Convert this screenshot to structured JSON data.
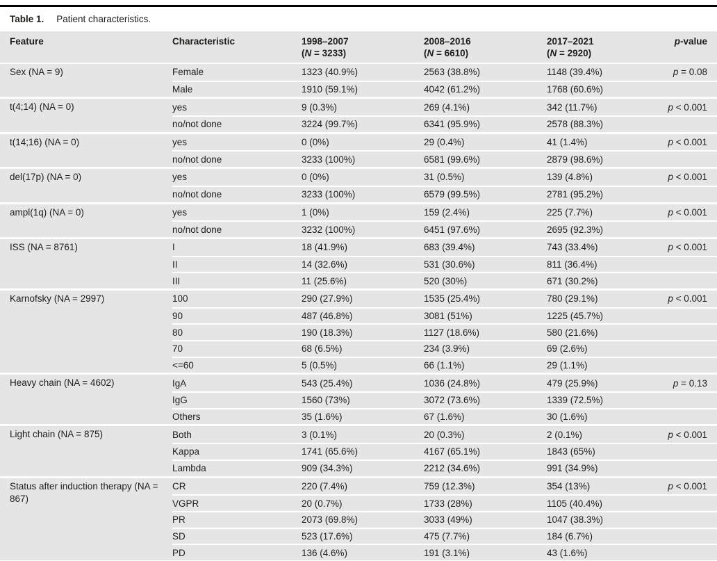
{
  "colors": {
    "row_background": "#e5e5e5",
    "top_rule": "#000000",
    "text": "#1d1d1b",
    "page_background": "#ffffff"
  },
  "caption": {
    "label": "Table 1.",
    "text": "Patient characteristics."
  },
  "header": {
    "feature": "Feature",
    "characteristic": "Characteristic",
    "periods": [
      {
        "range": "1998–2007",
        "n_prefix": "(",
        "n_sym": "N",
        "n_rest": " = 3233)"
      },
      {
        "range": "2008–2016",
        "n_prefix": "(",
        "n_sym": "N",
        "n_rest": " = 6610)"
      },
      {
        "range": "2017–2021",
        "n_prefix": "(",
        "n_sym": "N",
        "n_rest": " = 2920)"
      }
    ],
    "pvalue_sym": "p",
    "pvalue_rest": "-value"
  },
  "groups": [
    {
      "feature": "Sex (NA = 9)",
      "pvalue_sym": "p",
      "pvalue_rest": " = 0.08",
      "rows": [
        {
          "characteristic": "Female",
          "v1998": "1323 (40.9%)",
          "v2008": "2563 (38.8%)",
          "v2017": "1148 (39.4%)"
        },
        {
          "characteristic": "Male",
          "v1998": "1910 (59.1%)",
          "v2008": "4042 (61.2%)",
          "v2017": "1768 (60.6%)"
        }
      ]
    },
    {
      "feature": "t(4;14) (NA = 0)",
      "pvalue_sym": "p",
      "pvalue_rest": " < 0.001",
      "rows": [
        {
          "characteristic": "yes",
          "v1998": "9 (0.3%)",
          "v2008": "269 (4.1%)",
          "v2017": "342 (11.7%)"
        },
        {
          "characteristic": "no/not done",
          "v1998": "3224 (99.7%)",
          "v2008": "6341 (95.9%)",
          "v2017": "2578 (88.3%)"
        }
      ]
    },
    {
      "feature": "t(14;16) (NA = 0)",
      "pvalue_sym": "p",
      "pvalue_rest": " < 0.001",
      "rows": [
        {
          "characteristic": "yes",
          "v1998": "0 (0%)",
          "v2008": "29 (0.4%)",
          "v2017": "41 (1.4%)"
        },
        {
          "characteristic": "no/not done",
          "v1998": "3233 (100%)",
          "v2008": "6581 (99.6%)",
          "v2017": "2879 (98.6%)"
        }
      ]
    },
    {
      "feature": "del(17p) (NA = 0)",
      "pvalue_sym": "p",
      "pvalue_rest": " < 0.001",
      "rows": [
        {
          "characteristic": "yes",
          "v1998": "0 (0%)",
          "v2008": "31 (0.5%)",
          "v2017": "139 (4.8%)"
        },
        {
          "characteristic": "no/not done",
          "v1998": "3233 (100%)",
          "v2008": "6579 (99.5%)",
          "v2017": "2781 (95.2%)"
        }
      ]
    },
    {
      "feature": "ampl(1q) (NA = 0)",
      "pvalue_sym": "p",
      "pvalue_rest": " < 0.001",
      "rows": [
        {
          "characteristic": "yes",
          "v1998": "1 (0%)",
          "v2008": "159 (2.4%)",
          "v2017": "225 (7.7%)"
        },
        {
          "characteristic": "no/not done",
          "v1998": "3232 (100%)",
          "v2008": "6451 (97.6%)",
          "v2017": "2695 (92.3%)"
        }
      ]
    },
    {
      "feature": "ISS (NA = 8761)",
      "pvalue_sym": "p",
      "pvalue_rest": " < 0.001",
      "rows": [
        {
          "characteristic": "I",
          "v1998": "18 (41.9%)",
          "v2008": "683 (39.4%)",
          "v2017": "743 (33.4%)"
        },
        {
          "characteristic": "II",
          "v1998": "14 (32.6%)",
          "v2008": "531 (30.6%)",
          "v2017": "811 (36.4%)"
        },
        {
          "characteristic": "III",
          "v1998": "11 (25.6%)",
          "v2008": "520 (30%)",
          "v2017": "671 (30.2%)"
        }
      ]
    },
    {
      "feature": "Karnofsky (NA = 2997)",
      "pvalue_sym": "p",
      "pvalue_rest": " < 0.001",
      "rows": [
        {
          "characteristic": "100",
          "v1998": "290 (27.9%)",
          "v2008": "1535 (25.4%)",
          "v2017": "780 (29.1%)"
        },
        {
          "characteristic": "90",
          "v1998": "487 (46.8%)",
          "v2008": "3081 (51%)",
          "v2017": "1225 (45.7%)"
        },
        {
          "characteristic": "80",
          "v1998": "190 (18.3%)",
          "v2008": "1127 (18.6%)",
          "v2017": "580 (21.6%)"
        },
        {
          "characteristic": "70",
          "v1998": "68 (6.5%)",
          "v2008": "234 (3.9%)",
          "v2017": "69 (2.6%)"
        },
        {
          "characteristic": "<=60",
          "v1998": "5 (0.5%)",
          "v2008": "66 (1.1%)",
          "v2017": "29 (1.1%)"
        }
      ]
    },
    {
      "feature": "Heavy chain (NA = 4602)",
      "pvalue_sym": "p",
      "pvalue_rest": " = 0.13",
      "rows": [
        {
          "characteristic": "IgA",
          "v1998": "543 (25.4%)",
          "v2008": "1036 (24.8%)",
          "v2017": "479 (25.9%)"
        },
        {
          "characteristic": "IgG",
          "v1998": "1560 (73%)",
          "v2008": "3072 (73.6%)",
          "v2017": "1339 (72.5%)"
        },
        {
          "characteristic": "Others",
          "v1998": "35 (1.6%)",
          "v2008": "67 (1.6%)",
          "v2017": "30 (1.6%)"
        }
      ]
    },
    {
      "feature": "Light chain (NA = 875)",
      "pvalue_sym": "p",
      "pvalue_rest": " < 0.001",
      "rows": [
        {
          "characteristic": "Both",
          "v1998": "3 (0.1%)",
          "v2008": "20 (0.3%)",
          "v2017": "2 (0.1%)"
        },
        {
          "characteristic": "Kappa",
          "v1998": "1741 (65.6%)",
          "v2008": "4167 (65.1%)",
          "v2017": "1843 (65%)"
        },
        {
          "characteristic": "Lambda",
          "v1998": "909 (34.3%)",
          "v2008": "2212 (34.6%)",
          "v2017": "991 (34.9%)"
        }
      ]
    },
    {
      "feature": "Status after induction therapy (NA = 867)",
      "pvalue_sym": "p",
      "pvalue_rest": " < 0.001",
      "rows": [
        {
          "characteristic": "CR",
          "v1998": "220 (7.4%)",
          "v2008": "759 (12.3%)",
          "v2017": "354 (13%)"
        },
        {
          "characteristic": "VGPR",
          "v1998": "20 (0.7%)",
          "v2008": "1733 (28%)",
          "v2017": "1105 (40.4%)"
        },
        {
          "characteristic": "PR",
          "v1998": "2073 (69.8%)",
          "v2008": "3033 (49%)",
          "v2017": "1047 (38.3%)"
        },
        {
          "characteristic": "SD",
          "v1998": "523 (17.6%)",
          "v2008": "475 (7.7%)",
          "v2017": "184 (6.7%)"
        },
        {
          "characteristic": "PD",
          "v1998": "136 (4.6%)",
          "v2008": "191 (3.1%)",
          "v2017": "43 (1.6%)"
        }
      ]
    }
  ]
}
